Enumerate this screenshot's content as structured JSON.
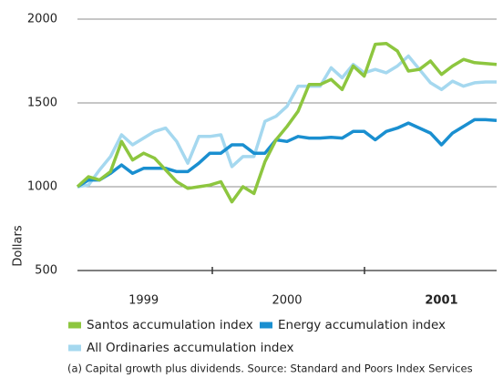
{
  "chart_data": {
    "type": "line",
    "y_label": "Dollars",
    "categories": [
      null,
      null,
      null,
      null,
      null,
      null,
      "1999",
      null,
      null,
      null,
      null,
      null,
      null,
      null,
      null,
      null,
      null,
      null,
      null,
      "2000",
      null,
      null,
      null,
      null,
      null,
      null,
      null,
      null,
      null,
      null,
      null,
      null,
      null,
      "2001",
      null,
      null,
      null,
      null,
      null
    ],
    "series": [
      {
        "name": "Santos accumulation index",
        "color": "#8dc63f",
        "values": [
          1000,
          1060,
          1040,
          1090,
          1270,
          1160,
          1200,
          1170,
          1100,
          1030,
          990,
          1000,
          1010,
          1030,
          910,
          1000,
          960,
          1150,
          1280,
          1360,
          1450,
          1610,
          1610,
          1640,
          1580,
          1720,
          1660,
          1850,
          1855,
          1810,
          1690,
          1700,
          1750,
          1670,
          1720,
          1760,
          1740,
          1735,
          1730
        ]
      },
      {
        "name": "Energy accumulation index",
        "color": "#1a8fd0",
        "values": [
          1000,
          1040,
          1040,
          1080,
          1130,
          1080,
          1110,
          1110,
          1110,
          1090,
          1090,
          1140,
          1200,
          1200,
          1250,
          1250,
          1200,
          1200,
          1280,
          1270,
          1300,
          1290,
          1290,
          1295,
          1290,
          1330,
          1330,
          1280,
          1330,
          1350,
          1380,
          1350,
          1320,
          1250,
          1320,
          1360,
          1400,
          1400,
          1395
        ]
      },
      {
        "name": "All Ordinaries accumulation index",
        "color": "#a5d8ef",
        "values": [
          1000,
          1010,
          1100,
          1180,
          1310,
          1250,
          1290,
          1330,
          1350,
          1270,
          1140,
          1300,
          1300,
          1310,
          1120,
          1180,
          1180,
          1390,
          1420,
          1480,
          1600,
          1600,
          1600,
          1710,
          1650,
          1730,
          1680,
          1700,
          1680,
          1720,
          1780,
          1700,
          1620,
          1580,
          1630,
          1600,
          1620,
          1625,
          1625
        ]
      }
    ],
    "ylim": [
      500,
      2000
    ],
    "yticks": [
      500,
      1000,
      1500,
      2000
    ],
    "grid": true,
    "note": "(a) Capital growth plus dividends. Source: Standard and Poors Index Services"
  }
}
